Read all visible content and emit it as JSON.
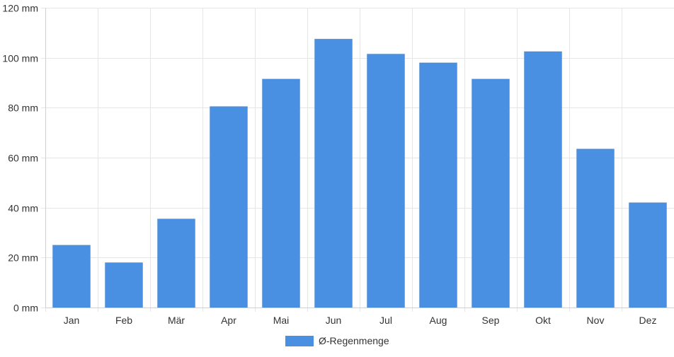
{
  "chart_data": {
    "type": "bar",
    "categories": [
      "Jan",
      "Feb",
      "Mär",
      "Apr",
      "Mai",
      "Jun",
      "Jul",
      "Aug",
      "Sep",
      "Okt",
      "Nov",
      "Dez"
    ],
    "series": [
      {
        "name": "Ø-Regenmenge",
        "values": [
          25,
          18,
          35.5,
          80.5,
          91.5,
          107.5,
          101.5,
          98,
          91.5,
          102.5,
          63.5,
          42
        ],
        "color": "#4a90e2"
      }
    ],
    "y_ticks": [
      0,
      20,
      40,
      60,
      80,
      100,
      120
    ],
    "y_unit": " mm",
    "ylim": [
      0,
      120
    ],
    "grid": true,
    "legend_position": "bottom-center",
    "title": "",
    "xlabel": "",
    "ylabel": ""
  }
}
